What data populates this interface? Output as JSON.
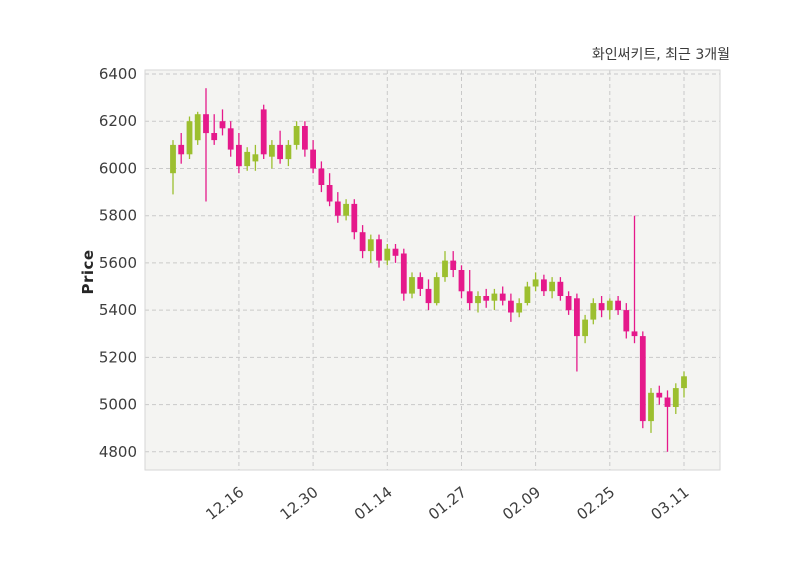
{
  "chart_data": {
    "type": "candlestick",
    "title": "화인써키트, 최근 3개월",
    "ylabel": "Price",
    "grid": "dashed",
    "legend": false,
    "y_ticks": [
      4800,
      5000,
      5200,
      5400,
      5600,
      5800,
      6000,
      6200,
      6400
    ],
    "y_domain": [
      4723,
      6417
    ],
    "x_ticks": [
      {
        "index": 8,
        "label": "12.16"
      },
      {
        "index": 17,
        "label": "12.30"
      },
      {
        "index": 26,
        "label": "01.14"
      },
      {
        "index": 35,
        "label": "01.27"
      },
      {
        "index": 44,
        "label": "02.09"
      },
      {
        "index": 53,
        "label": "02.25"
      },
      {
        "index": 62,
        "label": "03.11"
      }
    ],
    "colors": {
      "up": "#9cbf2f",
      "down": "#e5198b",
      "grid": "#c9c9c9",
      "plot_bg": "#f4f4f2",
      "plot_border": "#d6d6d6",
      "text": "#3d3d3d"
    },
    "candles_format": [
      "open",
      "high",
      "low",
      "close"
    ],
    "candles": [
      [
        5980,
        6120,
        5890,
        6100
      ],
      [
        6100,
        6150,
        6020,
        6060
      ],
      [
        6060,
        6220,
        6040,
        6200
      ],
      [
        6120,
        6240,
        6100,
        6230
      ],
      [
        6230,
        6340,
        5860,
        6150
      ],
      [
        6150,
        6230,
        6100,
        6120
      ],
      [
        6200,
        6250,
        6140,
        6170
      ],
      [
        6170,
        6200,
        6050,
        6080
      ],
      [
        6100,
        6150,
        5980,
        6010
      ],
      [
        6010,
        6090,
        5990,
        6070
      ],
      [
        6030,
        6100,
        5990,
        6060
      ],
      [
        6250,
        6270,
        6040,
        6060
      ],
      [
        6050,
        6120,
        6000,
        6100
      ],
      [
        6100,
        6160,
        6020,
        6040
      ],
      [
        6040,
        6120,
        6010,
        6100
      ],
      [
        6100,
        6200,
        6080,
        6180
      ],
      [
        6180,
        6200,
        6050,
        6080
      ],
      [
        6080,
        6120,
        5980,
        6000
      ],
      [
        6000,
        6030,
        5900,
        5930
      ],
      [
        5930,
        5980,
        5840,
        5860
      ],
      [
        5860,
        5900,
        5770,
        5800
      ],
      [
        5800,
        5870,
        5780,
        5850
      ],
      [
        5850,
        5870,
        5700,
        5730
      ],
      [
        5730,
        5760,
        5620,
        5650
      ],
      [
        5650,
        5720,
        5600,
        5700
      ],
      [
        5700,
        5720,
        5580,
        5610
      ],
      [
        5610,
        5680,
        5590,
        5660
      ],
      [
        5660,
        5680,
        5600,
        5630
      ],
      [
        5640,
        5660,
        5440,
        5470
      ],
      [
        5470,
        5560,
        5450,
        5540
      ],
      [
        5540,
        5560,
        5460,
        5490
      ],
      [
        5490,
        5530,
        5400,
        5430
      ],
      [
        5430,
        5560,
        5420,
        5540
      ],
      [
        5540,
        5650,
        5520,
        5610
      ],
      [
        5610,
        5650,
        5540,
        5570
      ],
      [
        5570,
        5590,
        5450,
        5480
      ],
      [
        5480,
        5570,
        5400,
        5430
      ],
      [
        5430,
        5480,
        5390,
        5460
      ],
      [
        5460,
        5490,
        5410,
        5440
      ],
      [
        5440,
        5490,
        5400,
        5470
      ],
      [
        5470,
        5500,
        5420,
        5440
      ],
      [
        5440,
        5470,
        5350,
        5390
      ],
      [
        5390,
        5450,
        5370,
        5430
      ],
      [
        5430,
        5520,
        5420,
        5500
      ],
      [
        5500,
        5560,
        5480,
        5530
      ],
      [
        5530,
        5550,
        5460,
        5480
      ],
      [
        5480,
        5540,
        5450,
        5520
      ],
      [
        5520,
        5540,
        5440,
        5460
      ],
      [
        5460,
        5480,
        5380,
        5400
      ],
      [
        5450,
        5470,
        5140,
        5290
      ],
      [
        5290,
        5380,
        5260,
        5360
      ],
      [
        5360,
        5450,
        5340,
        5430
      ],
      [
        5430,
        5460,
        5370,
        5400
      ],
      [
        5400,
        5450,
        5360,
        5440
      ],
      [
        5440,
        5460,
        5380,
        5400
      ],
      [
        5400,
        5430,
        5280,
        5310
      ],
      [
        5310,
        5800,
        5260,
        5290
      ],
      [
        5290,
        5310,
        4900,
        4930
      ],
      [
        4930,
        5070,
        4880,
        5050
      ],
      [
        5050,
        5080,
        5000,
        5030
      ],
      [
        5030,
        5060,
        4800,
        4990
      ],
      [
        4990,
        5090,
        4960,
        5070
      ],
      [
        5070,
        5140,
        5030,
        5120
      ]
    ]
  }
}
